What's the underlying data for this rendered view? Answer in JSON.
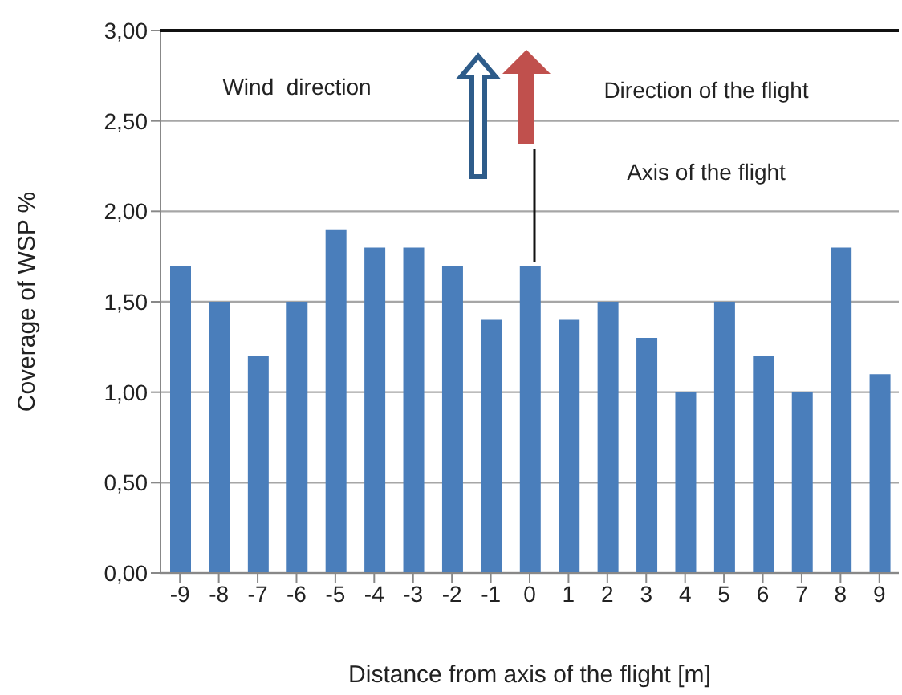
{
  "chart_data": {
    "type": "bar",
    "xlabel": "Distance from axis of the flight [m]",
    "ylabel": "Coverage of WSP %",
    "categories": [
      "-9",
      "-8",
      "-7",
      "-6",
      "-5",
      "-4",
      "-3",
      "-2",
      "-1",
      "0",
      "1",
      "2",
      "3",
      "4",
      "5",
      "6",
      "7",
      "8",
      "9"
    ],
    "values": [
      1.7,
      1.5,
      1.2,
      1.5,
      1.9,
      1.8,
      1.8,
      1.7,
      1.4,
      1.7,
      1.4,
      1.5,
      1.3,
      1.0,
      1.5,
      1.2,
      1.0,
      1.8,
      1.1
    ],
    "color": "#4a7ebb",
    "ylim": [
      0,
      3
    ],
    "yticks": [
      {
        "value": 0,
        "label": "0,00"
      },
      {
        "value": 0.5,
        "label": "0,50"
      },
      {
        "value": 1,
        "label": "1,00"
      },
      {
        "value": 1.5,
        "label": "1,50"
      },
      {
        "value": 2,
        "label": "2,00"
      },
      {
        "value": 2.5,
        "label": "2,50"
      },
      {
        "value": 3,
        "label": "3,00"
      }
    ],
    "grid": "y",
    "annotations": [
      "Wind  direction",
      "Direction of the flight",
      "Axis of the flight"
    ]
  }
}
